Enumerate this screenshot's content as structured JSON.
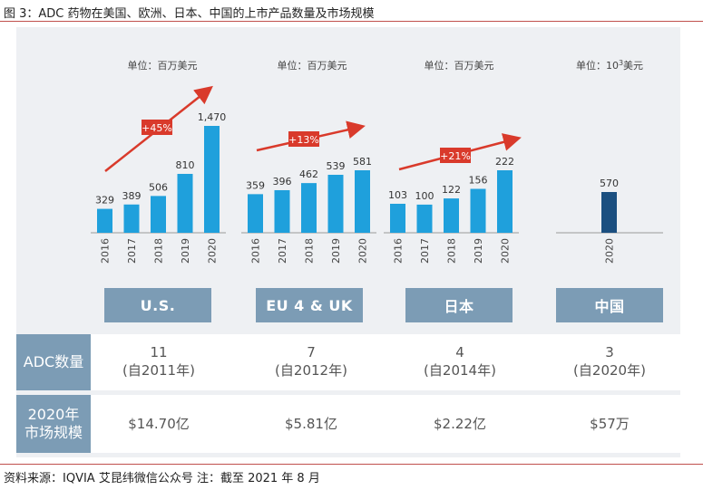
{
  "title": "图 3：ADC 药物在美国、欧洲、日本、中国的上市产品数量及市场规模",
  "source": "资料来源：IQVIA 艾昆纬微信公众号 注：截至 2021 年 8 月",
  "colors": {
    "bar": "#1fa0dc",
    "bar_china": "#1b4f80",
    "arrow": "#d93a2b",
    "region_bg": "#7c9cb5"
  },
  "chart_data": [
    {
      "type": "bar",
      "region": "U.S.",
      "unit": "单位：百万美元",
      "categories": [
        "2016",
        "2017",
        "2018",
        "2019",
        "2020"
      ],
      "values": [
        329,
        389,
        506,
        810,
        1470
      ],
      "growth": "+45%"
    },
    {
      "type": "bar",
      "region": "EU 4 & UK",
      "unit": "单位：百万美元",
      "categories": [
        "2016",
        "2017",
        "2018",
        "2019",
        "2020"
      ],
      "values": [
        359,
        396,
        462,
        539,
        581
      ],
      "growth": "+13%"
    },
    {
      "type": "bar",
      "region": "日本",
      "unit": "单位：百万美元",
      "categories": [
        "2016",
        "2017",
        "2018",
        "2019",
        "2020"
      ],
      "values": [
        103,
        100,
        122,
        156,
        222
      ],
      "growth": "+21%"
    },
    {
      "type": "bar",
      "region": "中国",
      "unit_prefix": "单位：10",
      "unit_sup": "3",
      "unit_suffix": "美元",
      "categories": [
        "2020"
      ],
      "values": [
        570
      ],
      "growth": ""
    }
  ],
  "table": {
    "adc_label": "ADC数量",
    "market_label_line1": "2020年",
    "market_label_line2": "市场规模",
    "adc_counts": [
      {
        "count": "11",
        "since": "(自2011年)"
      },
      {
        "count": "7",
        "since": "(自2012年)"
      },
      {
        "count": "4",
        "since": "(自2014年)"
      },
      {
        "count": "3",
        "since": "(自2020年)"
      }
    ],
    "market_size": [
      "$14.70亿",
      "$5.81亿",
      "$2.22亿",
      "$57万"
    ]
  }
}
